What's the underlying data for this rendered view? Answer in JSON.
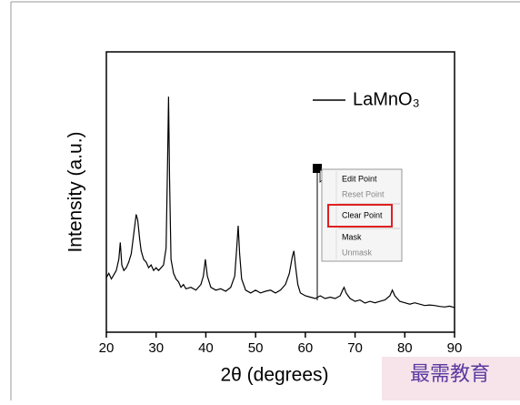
{
  "chart_data": {
    "type": "line",
    "xlabel": "2θ (degrees)",
    "ylabel": "Intensity (a.u.)",
    "xlim": [
      20,
      90
    ],
    "xticks": [
      20,
      30,
      40,
      50,
      60,
      70,
      80,
      90
    ],
    "ylim": [
      0,
      100
    ],
    "legend": "upper right",
    "series": [
      {
        "name": "LaMnO₃",
        "color": "#000000",
        "x": [
          20,
          20.5,
          21,
          21.5,
          22,
          22.5,
          22.8,
          23.1,
          23.5,
          24,
          24.5,
          25,
          25.5,
          26,
          26.3,
          26.7,
          27,
          27.5,
          28,
          28.5,
          29,
          29.5,
          30,
          30.5,
          31,
          31.5,
          32,
          32.3,
          32.5,
          32.7,
          33,
          33.5,
          34,
          34.5,
          35,
          35.5,
          36,
          37,
          38,
          39,
          39.5,
          39.9,
          40.3,
          41,
          42,
          43,
          44,
          45,
          45.8,
          46.2,
          46.5,
          46.8,
          47.2,
          48,
          49,
          50,
          51,
          52,
          53,
          54,
          55,
          56,
          56.8,
          57.4,
          57.7,
          58,
          58.5,
          59,
          60,
          61,
          62,
          63,
          64,
          65,
          66,
          67,
          67.5,
          67.8,
          68.2,
          69,
          70,
          71,
          72,
          73,
          74,
          75,
          76,
          77,
          77.5,
          78,
          79,
          80,
          81,
          82,
          83,
          84,
          85,
          86,
          87,
          88,
          89,
          90
        ],
        "values": [
          19.5,
          21,
          19,
          20.5,
          22,
          26,
          32,
          24,
          22,
          23,
          25,
          28,
          35,
          42,
          40,
          33,
          29,
          26,
          25,
          23,
          24,
          22,
          23,
          22,
          23,
          24,
          30,
          60,
          84,
          55,
          26,
          21,
          19,
          18,
          16,
          17,
          15.5,
          16,
          15,
          17,
          20,
          26,
          20,
          16,
          15,
          15.5,
          14.6,
          16,
          20,
          30,
          38,
          28,
          19,
          15,
          14,
          15,
          14,
          14.6,
          15,
          14,
          15,
          17,
          21,
          27,
          29,
          24,
          17,
          14,
          13,
          12.5,
          12,
          13,
          12,
          12.5,
          12,
          13,
          15,
          16,
          14,
          12,
          11,
          11.5,
          10.4,
          11,
          10.5,
          11,
          11.5,
          13,
          15,
          13,
          11,
          10.5,
          10,
          10.5,
          10,
          9.5,
          9.7,
          9.5,
          9.2,
          9,
          9.3,
          8.8
        ]
      }
    ]
  },
  "context_menu": {
    "items": [
      "Edit Point",
      "Reset Point",
      "Clear Point",
      "Mask",
      "Unmask"
    ]
  },
  "watermark": "最需教育"
}
